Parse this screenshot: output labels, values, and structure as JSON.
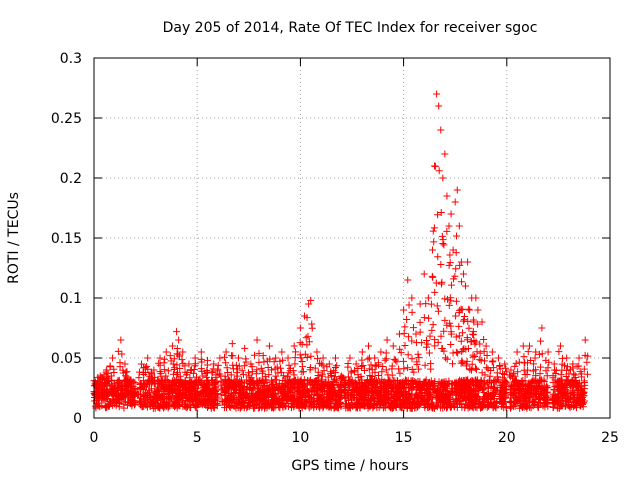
{
  "chart_data": {
    "type": "scatter",
    "title": "Day 205 of 2014, Rate Of TEC Index for receiver sgoc",
    "xlabel": "GPS time / hours",
    "ylabel": "ROTI / TECUs",
    "xlim": [
      0,
      25
    ],
    "ylim": [
      0,
      0.3
    ],
    "x_ticks": [
      0,
      5,
      10,
      15,
      20,
      25
    ],
    "x_tick_labels": [
      "0",
      "5",
      "10",
      "15",
      "20",
      "25"
    ],
    "y_ticks": [
      0,
      0.05,
      0.1,
      0.15,
      0.2,
      0.25,
      0.3
    ],
    "y_tick_labels": [
      "0",
      "0.05",
      "0.1",
      "0.15",
      "0.2",
      "0.25",
      "0.3"
    ],
    "grid": true,
    "marker": "+",
    "point_color": "#ff0000",
    "series": [
      {
        "name": "ROTI",
        "x": [
          0.0,
          0.3,
          0.6,
          0.9,
          1.2,
          1.3,
          1.5,
          1.8,
          2.1,
          2.3,
          2.6,
          2.9,
          3.2,
          3.5,
          3.8,
          4.0,
          4.1,
          4.3,
          4.6,
          4.9,
          5.2,
          5.5,
          5.8,
          6.1,
          6.4,
          6.7,
          7.0,
          7.3,
          7.6,
          7.9,
          8.2,
          8.5,
          8.8,
          9.1,
          9.4,
          9.7,
          10.0,
          10.2,
          10.4,
          10.5,
          10.8,
          11.1,
          11.4,
          11.7,
          12.0,
          12.4,
          12.7,
          13.0,
          13.3,
          13.6,
          13.9,
          14.2,
          14.5,
          14.8,
          15.0,
          15.2,
          15.4,
          15.6,
          15.8,
          16.0,
          16.2,
          16.4,
          16.5,
          16.6,
          16.7,
          16.8,
          16.9,
          17.0,
          17.1,
          17.2,
          17.3,
          17.4,
          17.5,
          17.6,
          17.7,
          17.8,
          17.9,
          18.0,
          18.1,
          18.2,
          18.3,
          18.4,
          18.5,
          18.6,
          18.8,
          19.0,
          19.3,
          19.6,
          19.9,
          20.2,
          20.5,
          20.8,
          21.1,
          21.4,
          21.7,
          22.0,
          22.3,
          22.6,
          22.9,
          23.2,
          23.5,
          23.8
        ],
        "y": [
          0.022,
          0.035,
          0.04,
          0.05,
          0.025,
          0.065,
          0.045,
          0.03,
          0.02,
          0.045,
          0.05,
          0.04,
          0.05,
          0.055,
          0.06,
          0.072,
          0.065,
          0.055,
          0.045,
          0.05,
          0.055,
          0.048,
          0.045,
          0.05,
          0.055,
          0.062,
          0.05,
          0.058,
          0.045,
          0.065,
          0.052,
          0.06,
          0.05,
          0.055,
          0.05,
          0.06,
          0.075,
          0.085,
          0.095,
          0.098,
          0.055,
          0.05,
          0.045,
          0.05,
          0.035,
          0.05,
          0.045,
          0.055,
          0.06,
          0.05,
          0.055,
          0.065,
          0.06,
          0.07,
          0.09,
          0.115,
          0.1,
          0.07,
          0.095,
          0.12,
          0.1,
          0.14,
          0.21,
          0.27,
          0.26,
          0.24,
          0.2,
          0.22,
          0.185,
          0.16,
          0.17,
          0.14,
          0.18,
          0.19,
          0.16,
          0.13,
          0.12,
          0.11,
          0.13,
          0.09,
          0.1,
          0.08,
          0.1,
          0.09,
          0.08,
          0.06,
          0.055,
          0.05,
          0.045,
          0.04,
          0.055,
          0.06,
          0.06,
          0.055,
          0.075,
          0.055,
          0.045,
          0.06,
          0.05,
          0.045,
          0.05,
          0.065
        ]
      }
    ],
    "data_gaps_hours": [
      [
        2.0,
        2.15
      ],
      [
        6.0,
        6.15
      ],
      [
        12.0,
        12.1
      ],
      [
        20.0,
        20.15
      ],
      [
        22.0,
        22.2
      ]
    ],
    "baseline_band": [
      0.008,
      0.032
    ]
  }
}
